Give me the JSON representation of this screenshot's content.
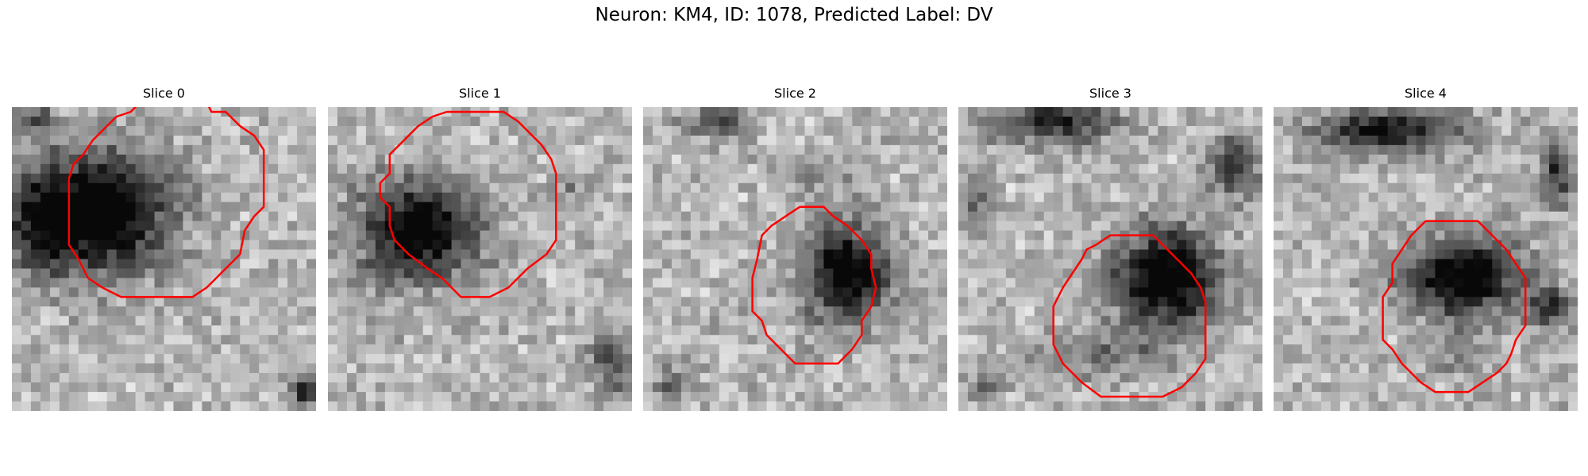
{
  "figure": {
    "title": "Neuron: KM4, ID: 1078, Predicted Label: DV"
  },
  "colors": {
    "contour": "#ff0000",
    "background": "#ffffff"
  },
  "panels": [
    {
      "title": "Slice 0"
    },
    {
      "title": "Slice 1"
    },
    {
      "title": "Slice 2"
    },
    {
      "title": "Slice 3"
    },
    {
      "title": "Slice 4"
    }
  ]
}
